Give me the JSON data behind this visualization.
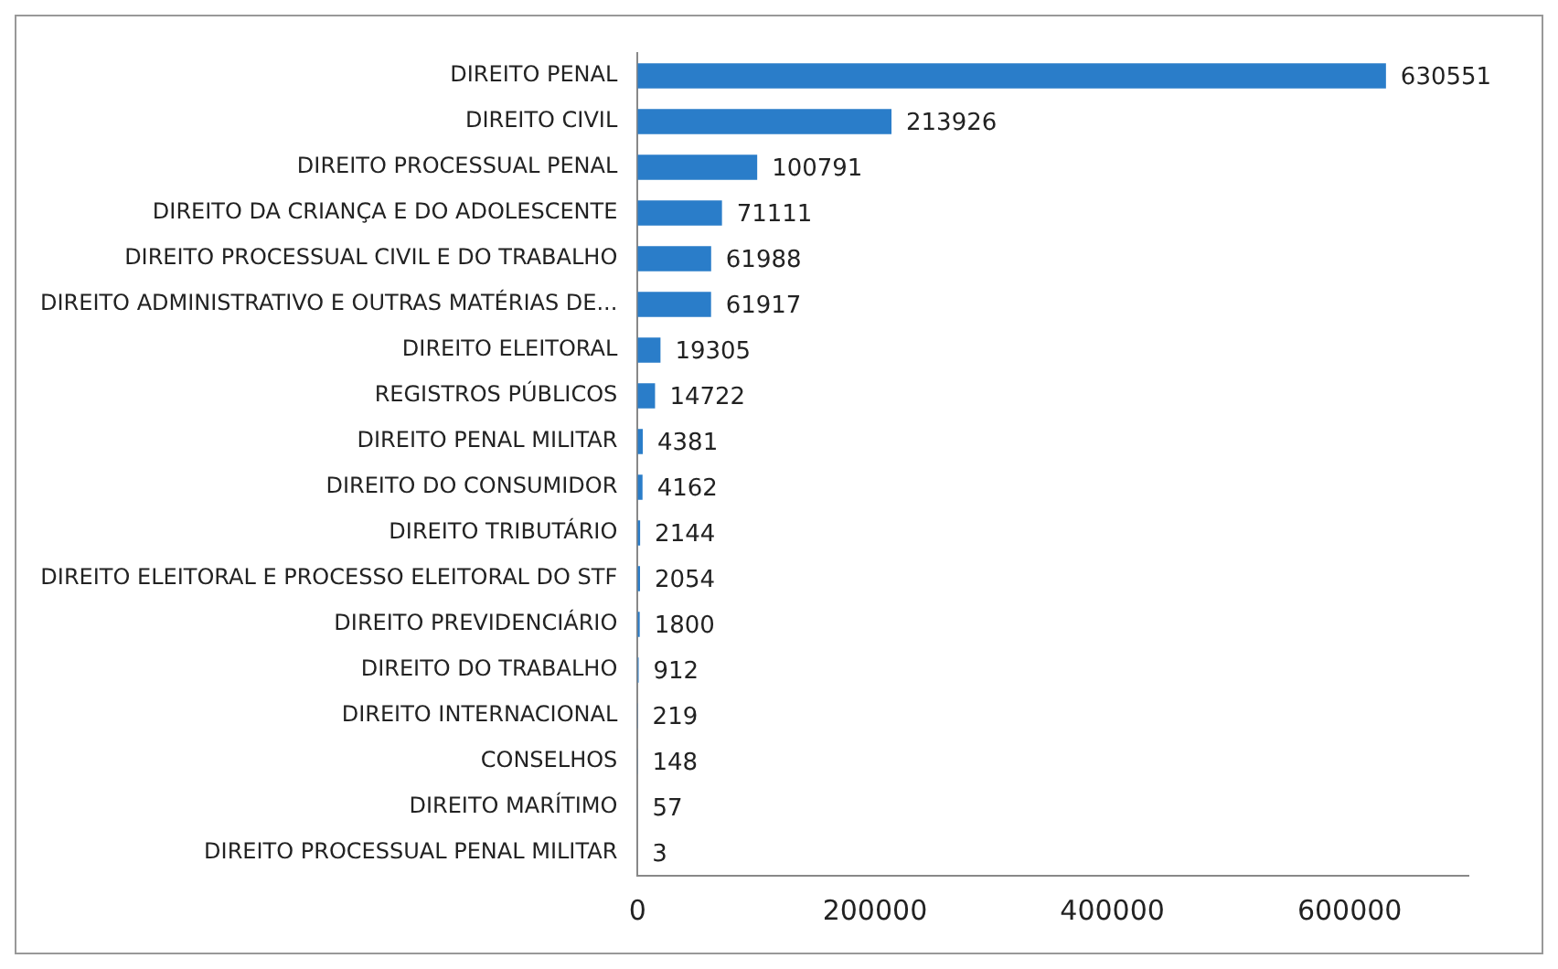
{
  "chart_data": {
    "type": "bar",
    "orientation": "horizontal",
    "categories": [
      "DIREITO PENAL",
      "DIREITO CIVIL",
      "DIREITO PROCESSUAL PENAL",
      "DIREITO DA CRIANÇA E DO ADOLESCENTE",
      "DIREITO PROCESSUAL CIVIL E DO TRABALHO",
      "DIREITO ADMINISTRATIVO E OUTRAS MATÉRIAS DE...",
      "DIREITO ELEITORAL",
      "REGISTROS PÚBLICOS",
      "DIREITO PENAL MILITAR",
      "DIREITO DO CONSUMIDOR",
      "DIREITO TRIBUTÁRIO",
      "DIREITO ELEITORAL E PROCESSO ELEITORAL DO STF",
      "DIREITO PREVIDENCIÁRIO",
      "DIREITO DO TRABALHO",
      "DIREITO INTERNACIONAL",
      "CONSELHOS",
      "DIREITO MARÍTIMO",
      "DIREITO PROCESSUAL PENAL MILITAR"
    ],
    "values": [
      630551,
      213926,
      100791,
      71111,
      61988,
      61917,
      19305,
      14722,
      4381,
      4162,
      2144,
      2054,
      1800,
      912,
      219,
      148,
      57,
      3
    ],
    "color": "#2a7dc9",
    "xlim": [
      0,
      700000
    ],
    "xticks": [
      0,
      200000,
      400000,
      600000
    ],
    "data_labels": true,
    "grid": false,
    "legend": false
  }
}
